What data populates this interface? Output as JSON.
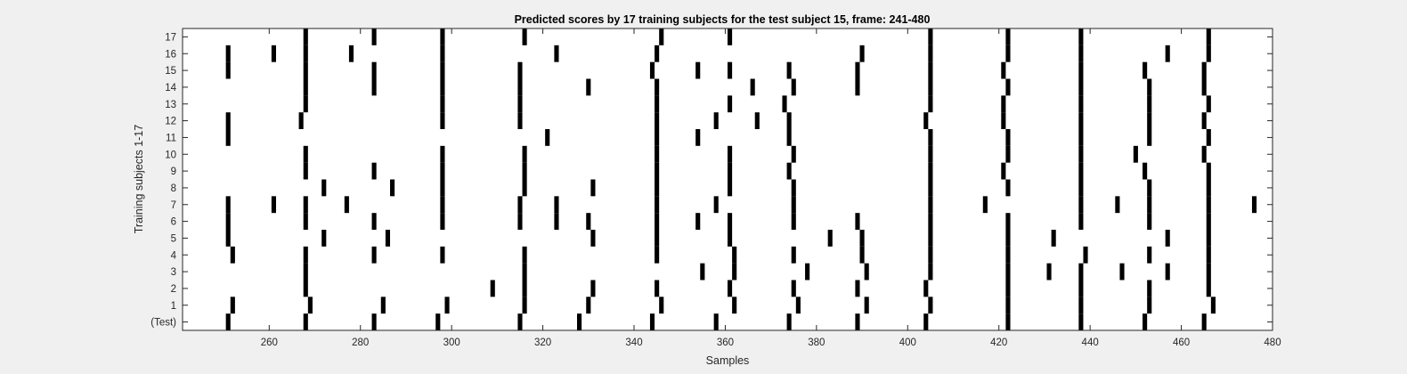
{
  "chart_data": {
    "type": "raster",
    "title": "Predicted scores by 17 training subjects for the test subject 15, frame: 241-480",
    "xlabel": "Samples",
    "ylabel": "Training subjects 1-17",
    "xlim": [
      241,
      480
    ],
    "xticks": [
      "260",
      "280",
      "300",
      "320",
      "340",
      "360",
      "380",
      "400",
      "420",
      "440",
      "460",
      "480"
    ],
    "yticks": [
      "(Test)",
      "1",
      "2",
      "3",
      "4",
      "5",
      "6",
      "7",
      "8",
      "9",
      "10",
      "11",
      "12",
      "13",
      "14",
      "15",
      "16",
      "17"
    ],
    "grid": false,
    "mark_color": "#000000",
    "rows": [
      {
        "label": "(Test)",
        "events": [
          251,
          268,
          283,
          297,
          315,
          328,
          344,
          358,
          374,
          389,
          404,
          422,
          438,
          452,
          465
        ]
      },
      {
        "label": "1",
        "events": [
          252,
          269,
          285,
          299,
          316,
          330,
          346,
          362,
          376,
          391,
          405,
          422,
          438,
          453,
          467
        ]
      },
      {
        "label": "2",
        "events": [
          268,
          309,
          316,
          331,
          345,
          361,
          375,
          389,
          404,
          422,
          438,
          453,
          466
        ]
      },
      {
        "label": "3",
        "events": [
          268,
          316,
          355,
          362,
          378,
          391,
          405,
          422,
          431,
          438,
          447,
          457,
          466
        ]
      },
      {
        "label": "4",
        "events": [
          252,
          268,
          283,
          298,
          316,
          345,
          362,
          375,
          390,
          405,
          422,
          439,
          453,
          466
        ]
      },
      {
        "label": "5",
        "events": [
          251,
          272,
          286,
          331,
          345,
          361,
          383,
          390,
          405,
          422,
          432,
          457,
          466
        ]
      },
      {
        "label": "6",
        "events": [
          251,
          268,
          283,
          298,
          315,
          323,
          330,
          345,
          354,
          361,
          375,
          389,
          405,
          422,
          438,
          453,
          466
        ]
      },
      {
        "label": "7",
        "events": [
          251,
          261,
          268,
          277,
          298,
          315,
          323,
          345,
          358,
          375,
          405,
          417,
          438,
          446,
          453,
          466,
          476
        ]
      },
      {
        "label": "8",
        "events": [
          272,
          287,
          298,
          316,
          331,
          345,
          361,
          375,
          405,
          422,
          438,
          453,
          466
        ]
      },
      {
        "label": "9",
        "events": [
          268,
          283,
          298,
          316,
          345,
          361,
          374,
          405,
          421,
          438,
          452,
          466
        ]
      },
      {
        "label": "10",
        "events": [
          268,
          298,
          316,
          345,
          361,
          375,
          405,
          422,
          438,
          450,
          465
        ]
      },
      {
        "label": "11",
        "events": [
          251,
          321,
          345,
          354,
          374,
          405,
          422,
          438,
          453,
          466
        ]
      },
      {
        "label": "12",
        "events": [
          251,
          267,
          298,
          315,
          345,
          358,
          367,
          374,
          404,
          421,
          438,
          453,
          465
        ]
      },
      {
        "label": "13",
        "events": [
          268,
          298,
          315,
          345,
          361,
          373,
          405,
          421,
          438,
          453,
          466
        ]
      },
      {
        "label": "14",
        "events": [
          268,
          283,
          298,
          315,
          330,
          345,
          366,
          375,
          389,
          405,
          422,
          438,
          453,
          465
        ]
      },
      {
        "label": "15",
        "events": [
          251,
          268,
          283,
          298,
          315,
          344,
          354,
          361,
          374,
          389,
          405,
          421,
          438,
          452,
          465
        ]
      },
      {
        "label": "16",
        "events": [
          251,
          261,
          268,
          278,
          298,
          323,
          345,
          390,
          405,
          422,
          438,
          457,
          466
        ]
      },
      {
        "label": "17",
        "events": [
          268,
          283,
          298,
          316,
          346,
          361,
          405,
          422,
          438,
          466
        ]
      }
    ]
  }
}
